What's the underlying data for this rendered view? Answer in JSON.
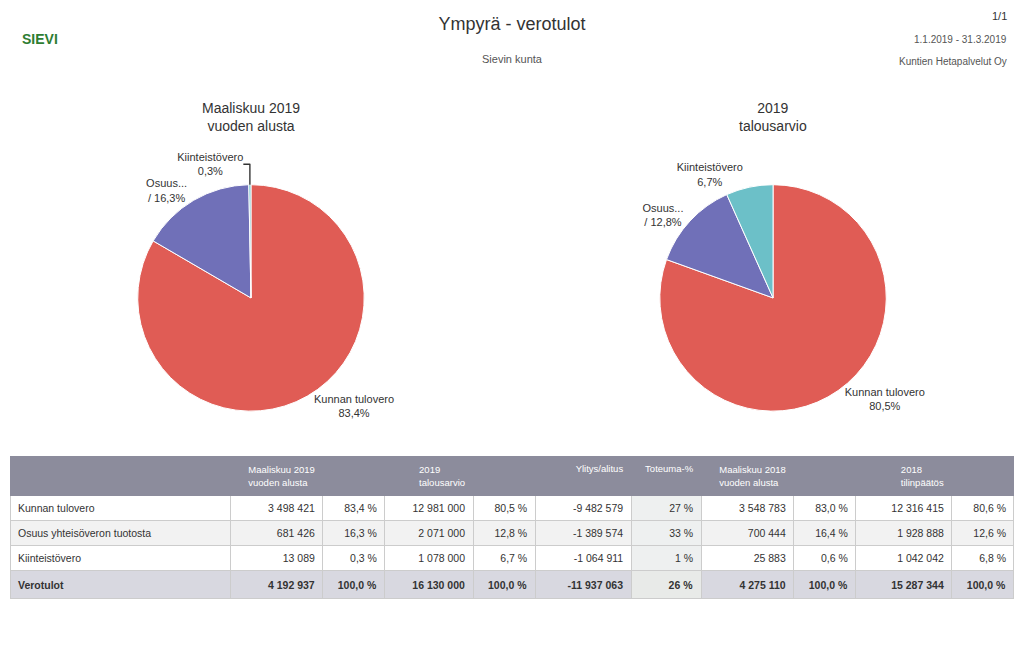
{
  "title": "Ympyrä - verotulot",
  "subtitle": "Sievin kunta",
  "annotations": [
    "1/1",
    "1.1.2019 - 31.3.2019",
    "Kuntien Hetapalvelut Oy",
    "SIEVI"
  ],
  "chart_data": [
    {
      "type": "pie",
      "title": "Maaliskuu 2019\nvuoden alusta",
      "categories": [
        "Kunnan tulovero",
        "Osuus...",
        "Kiinteistövero"
      ],
      "values": [
        83.4,
        16.3,
        0.3
      ],
      "value_labels": [
        "83,4%",
        "/ 16,3%",
        "0,3%"
      ],
      "colors": [
        "#E05C55",
        "#7070B8",
        "#6CC0C8"
      ]
    },
    {
      "type": "pie",
      "title": "2019\ntalousarvio",
      "categories": [
        "Kunnan tulovero",
        "Osuus...",
        "Kiinteistövero"
      ],
      "values": [
        80.5,
        12.8,
        6.7
      ],
      "value_labels": [
        "80,5%",
        "/ 12,8%",
        "6,7%"
      ],
      "colors": [
        "#E05C55",
        "#7070B8",
        "#6CC0C8"
      ]
    },
    {
      "type": "table",
      "columns": [
        null,
        "Maaliskuu 2019\nvuoden alusta",
        null,
        "2019\ntalousarvio",
        null,
        "Ylitys/alitus",
        "Toteuma-%",
        "Maaliskuu 2018\nvuoden alusta",
        null,
        "2018\ntilinpäätös",
        null
      ],
      "rows": [
        [
          "Kunnan tulovero",
          "3 498 421",
          "83,4 %",
          "12 981 000",
          "80,5 %",
          "-9 482 579",
          "27 %",
          "3 548 783",
          "83,0 %",
          "12 316 415",
          "80,6 %"
        ],
        [
          "Osuus yhteisöveron tuotosta",
          "681 426",
          "16,3 %",
          "2 071 000",
          "12,8 %",
          "-1 389 574",
          "33 %",
          "700 444",
          "16,4 %",
          "1 928 888",
          "12,6 %"
        ],
        [
          "Kiinteistövero",
          "13 089",
          "0,3 %",
          "1 078 000",
          "6,7 %",
          "-1 064 911",
          "1 %",
          "25 883",
          "0,6 %",
          "1 042 042",
          "6,8 %"
        ]
      ],
      "total_row": [
        "Verotulot",
        "4 192 937",
        "100,0 %",
        "16 130 000",
        "100,0 %",
        "-11 937 063",
        "26 %",
        "4 275 110",
        "100,0 %",
        "15 287 344",
        "100,0 %"
      ]
    }
  ]
}
